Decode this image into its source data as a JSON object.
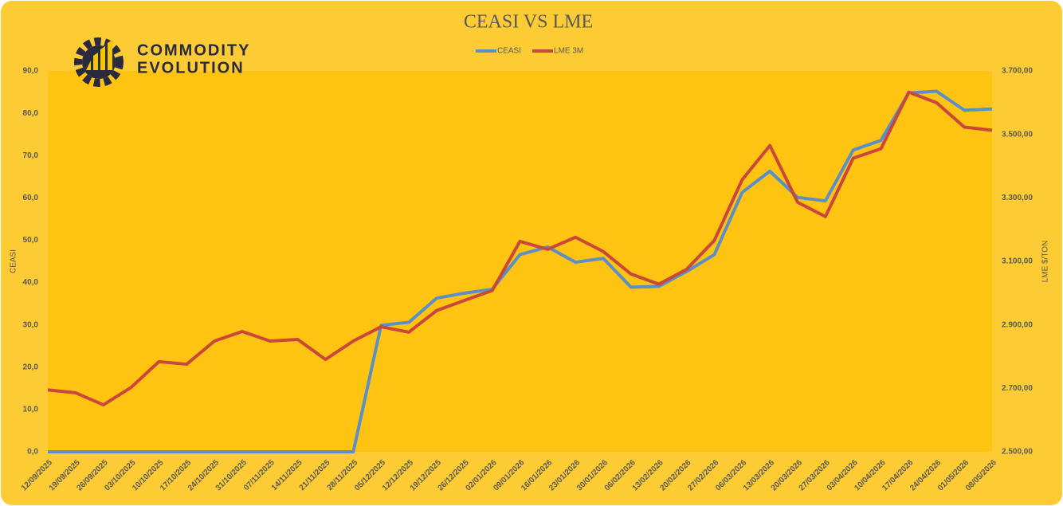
{
  "logo": {
    "line1": "COMMODITY",
    "line2": "EVOLUTION"
  },
  "chart_data": {
    "type": "line",
    "title": "CEASI VS LME",
    "y_label": "CEASI",
    "y2_label": "LME $/TON",
    "categories": [
      "12/09/2025",
      "19/09/2025",
      "26/09/2025",
      "03/10/2025",
      "10/10/2025",
      "17/10/2025",
      "24/10/2025",
      "31/10/2025",
      "07/11/2025",
      "14/11/2025",
      "21/11/2025",
      "28/11/2025",
      "05/12/2025",
      "12/12/2025",
      "19/12/2025",
      "26/12/2025",
      "02/01/2026",
      "09/01/2026",
      "16/01/2026",
      "23/01/2026",
      "30/01/2026",
      "06/02/2026",
      "13/02/2026",
      "20/02/2026",
      "27/02/2026",
      "06/03/2026",
      "13/03/2026",
      "20/03/2026",
      "27/03/2026",
      "03/04/2026",
      "10/04/2026",
      "17/04/2026",
      "24/04/2026",
      "01/05/2026",
      "08/05/2026"
    ],
    "series": [
      {
        "name": "CEASI",
        "color": "#5b8fc7",
        "values": [
          0,
          0,
          0,
          0,
          0,
          0,
          0,
          0,
          0,
          0,
          0,
          0,
          29.9,
          30.6,
          36.3,
          37.5,
          38.4,
          46.6,
          48.4,
          44.8,
          45.7,
          38.9,
          39.1,
          42.6,
          46.6,
          61.3,
          66.3,
          60.1,
          59.3,
          71.3,
          73.6,
          84.8,
          85.2,
          80.7,
          81.0
        ]
      },
      {
        "name": "LME 3M",
        "color": "#c9483a",
        "axis": "y2",
        "values": [
          2695,
          2686,
          2648,
          2703,
          2784,
          2776,
          2849,
          2879,
          2849,
          2854,
          2791,
          2849,
          2894,
          2877,
          2945,
          2977,
          3008,
          3163,
          3138,
          3176,
          3131,
          3060,
          3028,
          3075,
          3166,
          3357,
          3465,
          3286,
          3241,
          3425,
          3455,
          3633,
          3600,
          3523,
          3513
        ]
      }
    ],
    "ylim": [
      0,
      90
    ],
    "yticks": [
      {
        "value": 0,
        "label": "0,0"
      },
      {
        "value": 10,
        "label": "10,0"
      },
      {
        "value": 20,
        "label": "20,0"
      },
      {
        "value": 30,
        "label": "30,0"
      },
      {
        "value": 40,
        "label": "40,0"
      },
      {
        "value": 50,
        "label": "50,0"
      },
      {
        "value": 60,
        "label": "60,0"
      },
      {
        "value": 70,
        "label": "70,0"
      },
      {
        "value": 80,
        "label": "80,0"
      },
      {
        "value": 90,
        "label": "90,0"
      }
    ],
    "y2lim": [
      2500,
      3700
    ],
    "y2ticks": [
      {
        "value": 2500,
        "label": "2.500,00"
      },
      {
        "value": 2700,
        "label": "2.700,00"
      },
      {
        "value": 2900,
        "label": "2.900,00"
      },
      {
        "value": 3100,
        "label": "3.100,00"
      },
      {
        "value": 3300,
        "label": "3.300,00"
      },
      {
        "value": 3500,
        "label": "3.500,00"
      },
      {
        "value": 3700,
        "label": "3.700,00"
      }
    ],
    "legend": "top"
  }
}
